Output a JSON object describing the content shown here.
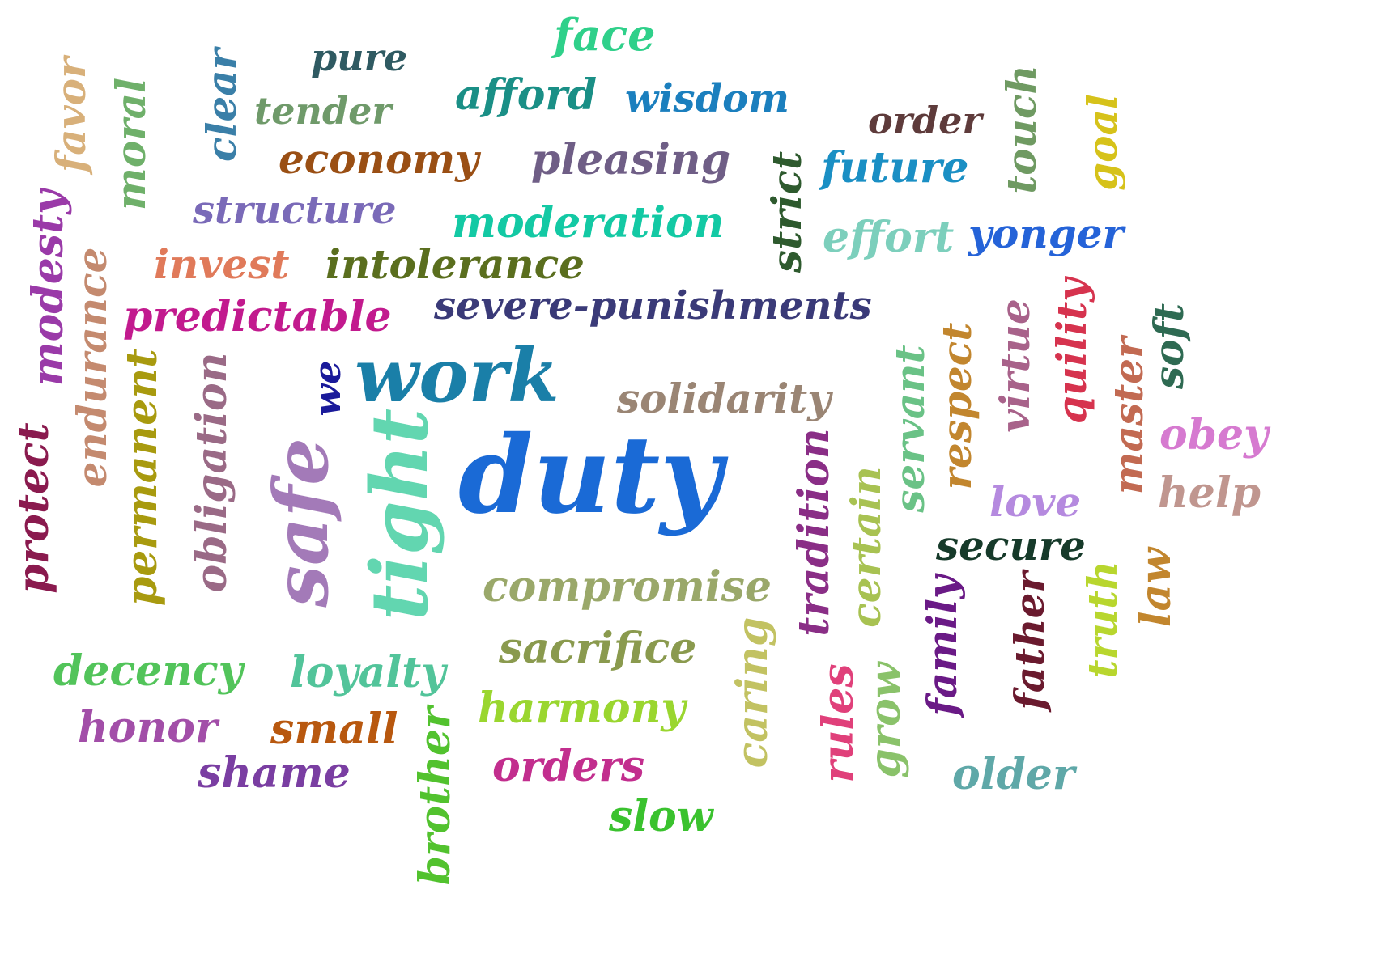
{
  "words": [
    {
      "text": "face",
      "color": "#2fd08a",
      "vertical": false
    },
    {
      "text": "pure",
      "color": "#2f5a62",
      "vertical": false
    },
    {
      "text": "afford",
      "color": "#1a8f86",
      "vertical": false
    },
    {
      "text": "wisdom",
      "color": "#1b7fbe",
      "vertical": false
    },
    {
      "text": "tender",
      "color": "#6f9a6a",
      "vertical": false
    },
    {
      "text": "order",
      "color": "#5e3b3b",
      "vertical": false
    },
    {
      "text": "economy",
      "color": "#9a4f14",
      "vertical": false
    },
    {
      "text": "pleasing",
      "color": "#6f5e86",
      "vertical": false
    },
    {
      "text": "future",
      "color": "#1a8fc4",
      "vertical": false
    },
    {
      "text": "structure",
      "color": "#7a6ab8",
      "vertical": false
    },
    {
      "text": "moderation",
      "color": "#13c9a4",
      "vertical": false
    },
    {
      "text": "effort",
      "color": "#7ccfbc",
      "vertical": false
    },
    {
      "text": "yonger",
      "color": "#2563d8",
      "vertical": false
    },
    {
      "text": "invest",
      "color": "#e07a5a",
      "vertical": false
    },
    {
      "text": "intolerance",
      "color": "#5a6e1e",
      "vertical": false
    },
    {
      "text": "predictable",
      "color": "#c21a8e",
      "vertical": false
    },
    {
      "text": "severe-punishments",
      "color": "#3a3a78",
      "vertical": false
    },
    {
      "text": "work",
      "color": "#1a7fa8",
      "vertical": false
    },
    {
      "text": "solidarity",
      "color": "#9a8574",
      "vertical": false
    },
    {
      "text": "duty",
      "color": "#1a6ad6",
      "vertical": false
    },
    {
      "text": "obey",
      "color": "#d67ad0",
      "vertical": false
    },
    {
      "text": "help",
      "color": "#c0968f",
      "vertical": false
    },
    {
      "text": "love",
      "color": "#b58adf",
      "vertical": false
    },
    {
      "text": "secure",
      "color": "#163a2a",
      "vertical": false
    },
    {
      "text": "compromise",
      "color": "#9aa86a",
      "vertical": false
    },
    {
      "text": "sacrifice",
      "color": "#8a9a4e",
      "vertical": false
    },
    {
      "text": "decency",
      "color": "#52c45a",
      "vertical": false
    },
    {
      "text": "loyalty",
      "color": "#52c49a",
      "vertical": false
    },
    {
      "text": "harmony",
      "color": "#9ad62f",
      "vertical": false
    },
    {
      "text": "honor",
      "color": "#a24ea8",
      "vertical": false
    },
    {
      "text": "small",
      "color": "#b8580f",
      "vertical": false
    },
    {
      "text": "orders",
      "color": "#c22e8e",
      "vertical": false
    },
    {
      "text": "shame",
      "color": "#7a3ea2",
      "vertical": false
    },
    {
      "text": "slow",
      "color": "#3ac22e",
      "vertical": false
    },
    {
      "text": "older",
      "color": "#5fa8a8",
      "vertical": false
    },
    {
      "text": "favor",
      "color": "#d8b07a",
      "vertical": true
    },
    {
      "text": "moral",
      "color": "#6fb06a",
      "vertical": true
    },
    {
      "text": "clear",
      "color": "#3a7fa8",
      "vertical": true
    },
    {
      "text": "touch",
      "color": "#6f9a62",
      "vertical": true
    },
    {
      "text": "goal",
      "color": "#d6c21a",
      "vertical": true
    },
    {
      "text": "strict",
      "color": "#2e5a2e",
      "vertical": true
    },
    {
      "text": "modesty",
      "color": "#9a3aa8",
      "vertical": true
    },
    {
      "text": "endurance",
      "color": "#c48a6f",
      "vertical": true
    },
    {
      "text": "we",
      "color": "#1a1a9a",
      "vertical": true
    },
    {
      "text": "permanent",
      "color": "#a89a0f",
      "vertical": true
    },
    {
      "text": "obligation",
      "color": "#9a6a86",
      "vertical": true
    },
    {
      "text": "safe",
      "color": "#a37ab8",
      "vertical": true
    },
    {
      "text": "tight",
      "color": "#62d6b0",
      "vertical": true
    },
    {
      "text": "protect",
      "color": "#8a1a4e",
      "vertical": true
    },
    {
      "text": "virtue",
      "color": "#a8628a",
      "vertical": true
    },
    {
      "text": "quility",
      "color": "#d6334e",
      "vertical": true
    },
    {
      "text": "soft",
      "color": "#2e6a52",
      "vertical": true
    },
    {
      "text": "servant",
      "color": "#6ac286",
      "vertical": true
    },
    {
      "text": "respect",
      "color": "#c2862e",
      "vertical": true
    },
    {
      "text": "master",
      "color": "#c26a52",
      "vertical": true
    },
    {
      "text": "tradition",
      "color": "#8a2e86",
      "vertical": true
    },
    {
      "text": "certain",
      "color": "#a8c252",
      "vertical": true
    },
    {
      "text": "family",
      "color": "#6a1a86",
      "vertical": true
    },
    {
      "text": "father",
      "color": "#6a1a2e",
      "vertical": true
    },
    {
      "text": "truth",
      "color": "#b8d62e",
      "vertical": true
    },
    {
      "text": "law",
      "color": "#c2862e",
      "vertical": true
    },
    {
      "text": "caring",
      "color": "#c2c262",
      "vertical": true
    },
    {
      "text": "rules",
      "color": "#e0407a",
      "vertical": true
    },
    {
      "text": "grow",
      "color": "#8ac26a",
      "vertical": true
    },
    {
      "text": "brother",
      "color": "#52c22e",
      "vertical": true
    }
  ]
}
